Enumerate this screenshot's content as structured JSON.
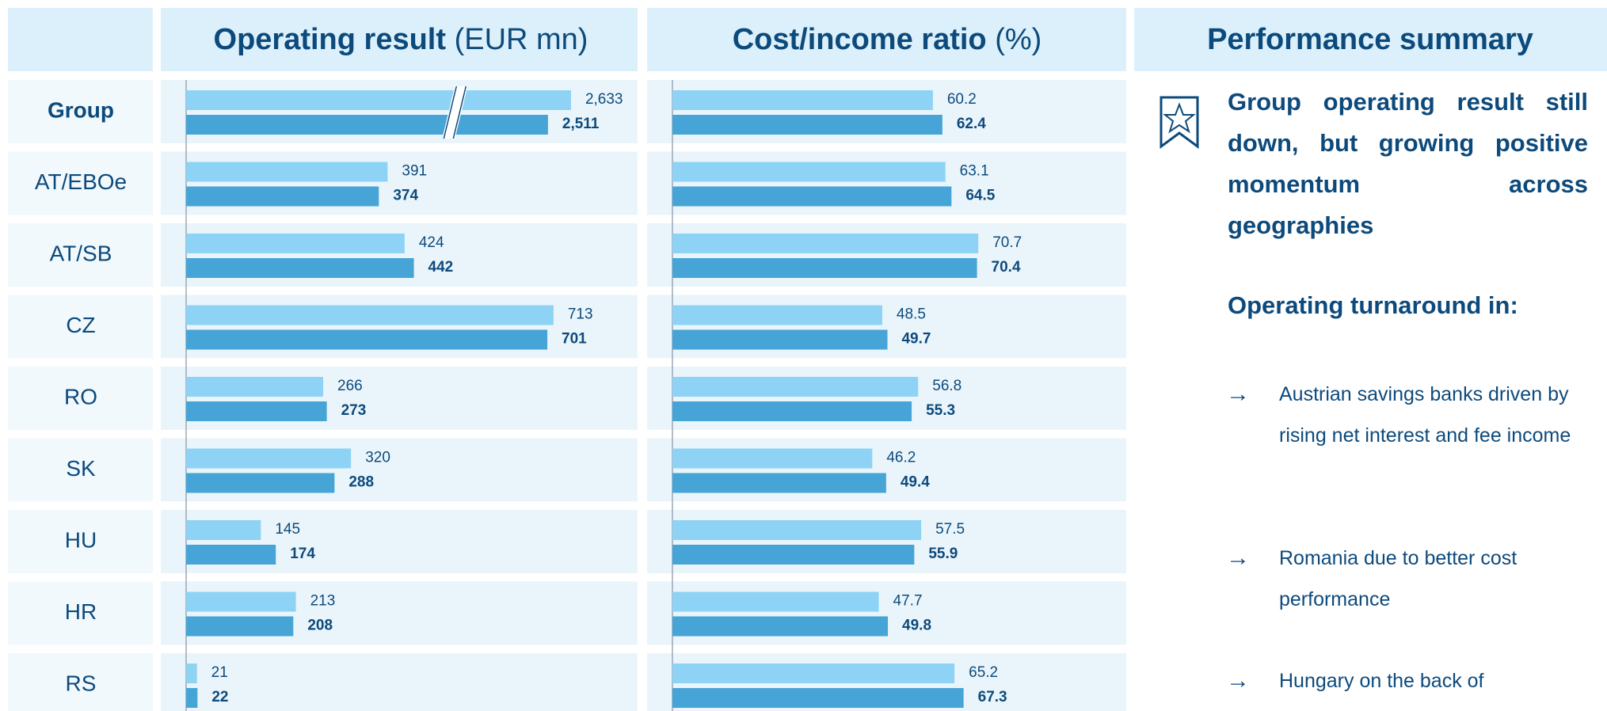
{
  "chart_data": [
    {
      "type": "bar",
      "orientation": "horizontal",
      "title": "Operating result",
      "unit": "(EUR mn)",
      "categories": [
        "Group",
        "AT/EBOe",
        "AT/SB",
        "CZ",
        "RO",
        "SK",
        "HU",
        "HR",
        "RS"
      ],
      "axis_break": true,
      "xlim": [
        0,
        850
      ],
      "series": [
        {
          "color": "#8ed3f5",
          "values": [
            2633,
            391,
            424,
            713,
            266,
            320,
            145,
            213,
            21
          ],
          "value_labels": [
            "2,633",
            "391",
            "424",
            "713",
            "266",
            "320",
            "145",
            "213",
            "21"
          ]
        },
        {
          "color": "#47a4d6",
          "bold": true,
          "values": [
            2511,
            374,
            442,
            701,
            273,
            288,
            174,
            208,
            22
          ],
          "value_labels": [
            "2,511",
            "374",
            "442",
            "701",
            "273",
            "288",
            "174",
            "208",
            "22"
          ]
        }
      ]
    },
    {
      "type": "bar",
      "orientation": "horizontal",
      "title": "Cost/income ratio",
      "unit": "(%)",
      "xlim": [
        0,
        80
      ],
      "series": [
        {
          "color": "#8ed3f5",
          "values": [
            60.2,
            63.1,
            70.7,
            48.5,
            56.8,
            46.2,
            57.5,
            47.7,
            65.2
          ]
        },
        {
          "color": "#47a4d6",
          "bold": true,
          "values": [
            62.4,
            64.5,
            70.4,
            49.7,
            55.3,
            49.4,
            55.9,
            49.8,
            67.3
          ]
        }
      ]
    }
  ],
  "summary": {
    "title": "Performance summary",
    "headline": "Group operating result still down, but growing positive momentum across geographies",
    "subheading": "Operating turnaround in:",
    "bullets": [
      "Austrian savings banks driven by rising net interest and fee income",
      "Romania due to better cost performance",
      "Hungary on the back of"
    ]
  }
}
